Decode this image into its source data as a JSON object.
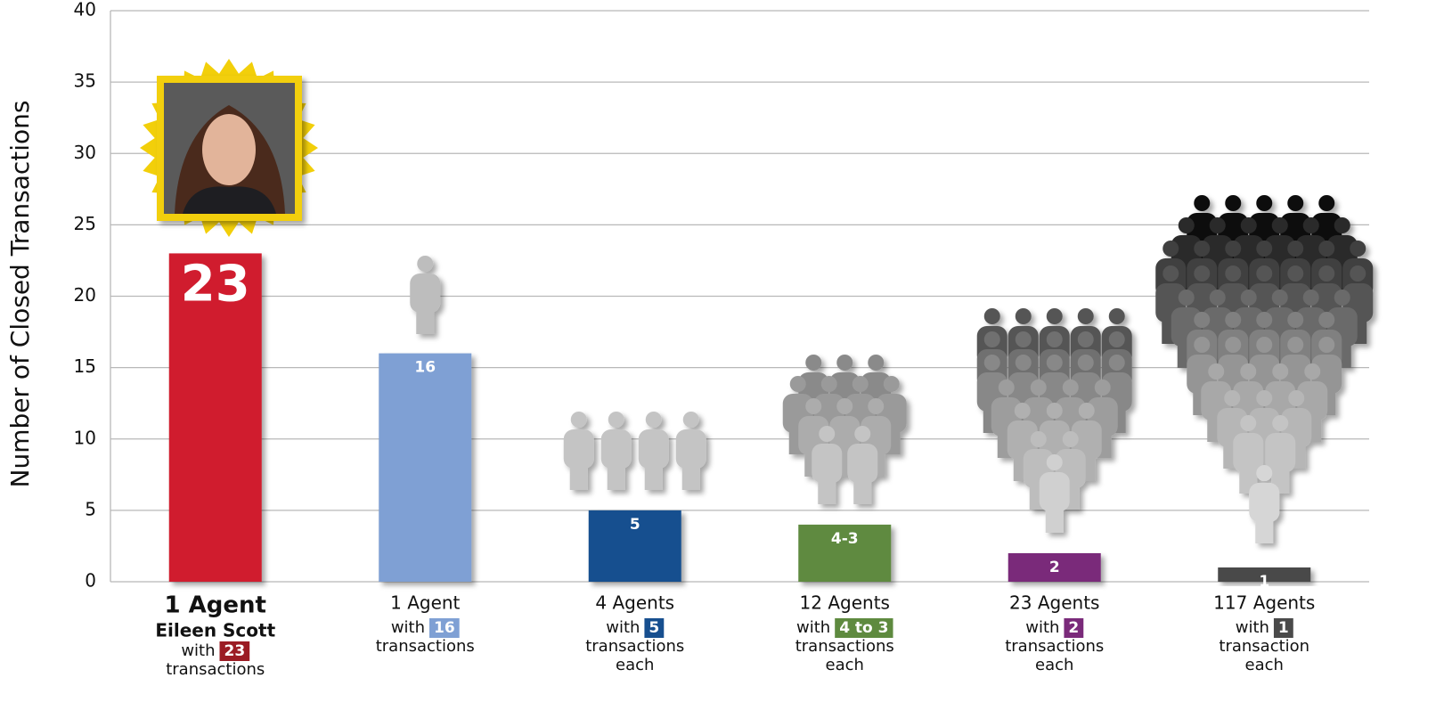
{
  "chart_data": {
    "type": "bar",
    "y_label": "Number of Closed Transactions",
    "categories": [
      "1 Agent",
      "1 Agent",
      "4 Agents",
      "12 Agents",
      "23 Agents",
      "117 Agents"
    ],
    "values": [
      23,
      16,
      5,
      4,
      2,
      1
    ],
    "value_labels": [
      "23",
      "16",
      "5",
      "4-3",
      "2",
      "1"
    ],
    "colors": [
      "#d01f2e",
      "#7fa0d4",
      "#174f8f",
      "#5e8a3f",
      "#7a2a7a",
      "#4a4a4a"
    ],
    "details": [
      {
        "name": "Eileen Scott",
        "with": "with",
        "badge": "23",
        "lines": [
          "transactions"
        ]
      },
      {
        "with": "with",
        "badge": "16",
        "lines": [
          "transactions"
        ]
      },
      {
        "with": "with",
        "badge": "5",
        "lines": [
          "transactions",
          "each"
        ]
      },
      {
        "with": "with",
        "badge": "4 to 3",
        "lines": [
          "transactions",
          "each"
        ]
      },
      {
        "with": "with",
        "badge": "2",
        "lines": [
          "transactions",
          "each"
        ]
      },
      {
        "with": "with",
        "badge": "1",
        "lines": [
          "transaction",
          "each"
        ]
      }
    ],
    "badge_colors": [
      "#9b1c24",
      "#7fa0d4",
      "#174f8f",
      "#5e8a3f",
      "#7a2a7a",
      "#4a4a4a"
    ],
    "ylim": [
      0,
      40
    ],
    "yticks": [
      0,
      5,
      10,
      15,
      20,
      25,
      30,
      35,
      40
    ],
    "grid": true
  }
}
